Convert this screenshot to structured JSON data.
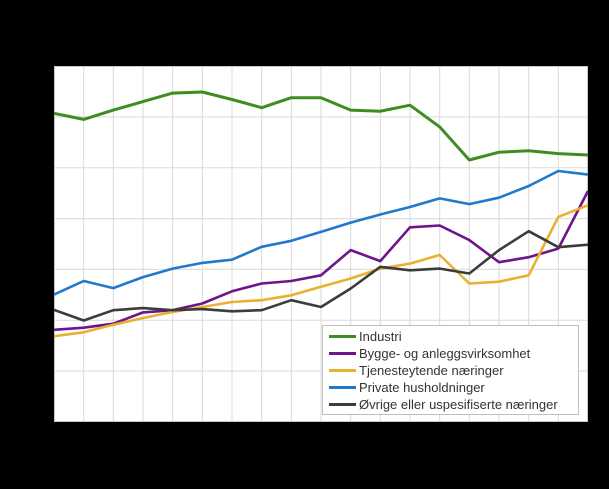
{
  "figure": {
    "background_color": "#000000",
    "plot_background_color": "#ffffff",
    "grid_color": "#d9d9d9",
    "plot_border_color": "#c6c6c6",
    "legend_border_color": "#bfbfbf",
    "legend_text_color": "#333333"
  },
  "chart_data": {
    "type": "line",
    "title": "",
    "xlabel": "",
    "ylabel": "",
    "axis_tick_labels_visible": false,
    "note": "No axis tick labels are rendered in the image (black margins). Values are estimated on a relative 0-100 scale of plot height read from the gridlines.",
    "grid": true,
    "x_gridline_intervals": 18,
    "y_gridline_intervals": 7,
    "x": [
      0,
      1,
      2,
      3,
      4,
      5,
      6,
      7,
      8,
      9,
      10,
      11,
      12,
      13,
      14,
      15,
      16,
      17,
      18
    ],
    "ylim": [
      0,
      100
    ],
    "legend_position": "bottom-right-inside",
    "series": [
      {
        "name": "Industri",
        "color": "#3f8c21",
        "stroke_width": 3,
        "values": [
          86.7,
          85.0,
          87.6,
          90.0,
          92.4,
          92.7,
          90.6,
          88.3,
          91.1,
          91.1,
          87.6,
          87.3,
          89.0,
          82.9,
          73.6,
          75.8,
          76.2,
          75.4,
          75.0
        ]
      },
      {
        "name": "Bygge- og anleggsvirksomhet",
        "color": "#6e148c",
        "stroke_width": 2.6,
        "values": [
          25.9,
          26.5,
          27.6,
          30.8,
          31.4,
          33.3,
          36.7,
          38.9,
          39.6,
          41.2,
          48.3,
          45.2,
          54.7,
          55.2,
          51.1,
          44.9,
          46.3,
          48.7,
          64.9
        ]
      },
      {
        "name": "Tjenesteytende næringer",
        "color": "#e8b230",
        "stroke_width": 2.6,
        "values": [
          24.1,
          25.2,
          27.3,
          29.2,
          30.9,
          32.3,
          33.7,
          34.2,
          35.6,
          38.0,
          40.3,
          43.1,
          44.5,
          46.9,
          38.9,
          39.4,
          41.2,
          57.6,
          60.9
        ]
      },
      {
        "name": "Private husholdninger",
        "color": "#2079cc",
        "stroke_width": 2.6,
        "values": [
          35.8,
          39.6,
          37.6,
          40.7,
          43.1,
          44.7,
          45.6,
          49.2,
          50.9,
          53.4,
          56.0,
          58.3,
          60.4,
          62.8,
          61.2,
          63.0,
          66.3,
          70.5,
          69.5
        ]
      },
      {
        "name": "Øvrige eller uspesifiserte næringer",
        "color": "#3c3c3c",
        "stroke_width": 2.6,
        "values": [
          31.5,
          28.5,
          31.4,
          32.0,
          31.4,
          31.7,
          31.1,
          31.4,
          34.2,
          32.3,
          37.5,
          43.6,
          42.6,
          43.1,
          41.7,
          48.3,
          53.6,
          49.1,
          49.8
        ]
      }
    ]
  }
}
